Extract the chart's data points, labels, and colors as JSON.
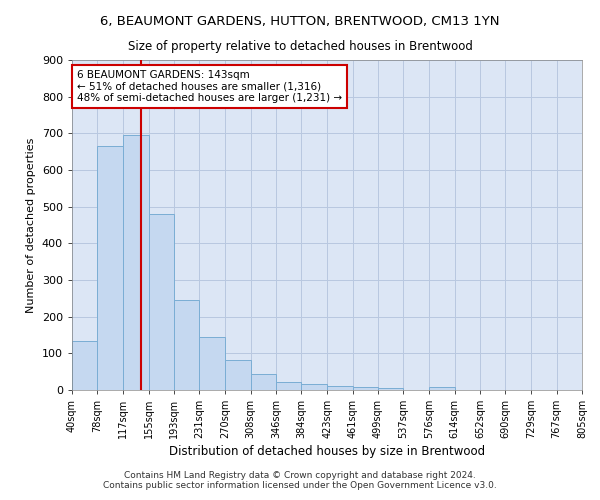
{
  "title": "6, BEAUMONT GARDENS, HUTTON, BRENTWOOD, CM13 1YN",
  "subtitle": "Size of property relative to detached houses in Brentwood",
  "xlabel": "Distribution of detached houses by size in Brentwood",
  "ylabel": "Number of detached properties",
  "bin_edges": [
    40,
    78,
    117,
    155,
    193,
    231,
    270,
    308,
    346,
    384,
    423,
    461,
    499,
    537,
    576,
    614,
    652,
    690,
    729,
    767,
    805
  ],
  "bar_heights": [
    135,
    665,
    695,
    480,
    245,
    145,
    83,
    45,
    22,
    16,
    11,
    7,
    5,
    1,
    8,
    1,
    0,
    0,
    0,
    0
  ],
  "tick_labels": [
    "40sqm",
    "78sqm",
    "117sqm",
    "155sqm",
    "193sqm",
    "231sqm",
    "270sqm",
    "308sqm",
    "346sqm",
    "384sqm",
    "423sqm",
    "461sqm",
    "499sqm",
    "537sqm",
    "576sqm",
    "614sqm",
    "652sqm",
    "690sqm",
    "729sqm",
    "767sqm",
    "805sqm"
  ],
  "bar_color": "#c5d8f0",
  "bar_edge_color": "#7aadd4",
  "vline_x": 143,
  "vline_color": "#cc0000",
  "annotation_text": "6 BEAUMONT GARDENS: 143sqm\n← 51% of detached houses are smaller (1,316)\n48% of semi-detached houses are larger (1,231) →",
  "annotation_box_color": "#ffffff",
  "annotation_box_edge": "#cc0000",
  "ylim": [
    0,
    900
  ],
  "yticks": [
    0,
    100,
    200,
    300,
    400,
    500,
    600,
    700,
    800,
    900
  ],
  "ax_facecolor": "#dce6f5",
  "background_color": "#ffffff",
  "grid_color": "#b8c8e0",
  "footer_line1": "Contains HM Land Registry data © Crown copyright and database right 2024.",
  "footer_line2": "Contains public sector information licensed under the Open Government Licence v3.0."
}
